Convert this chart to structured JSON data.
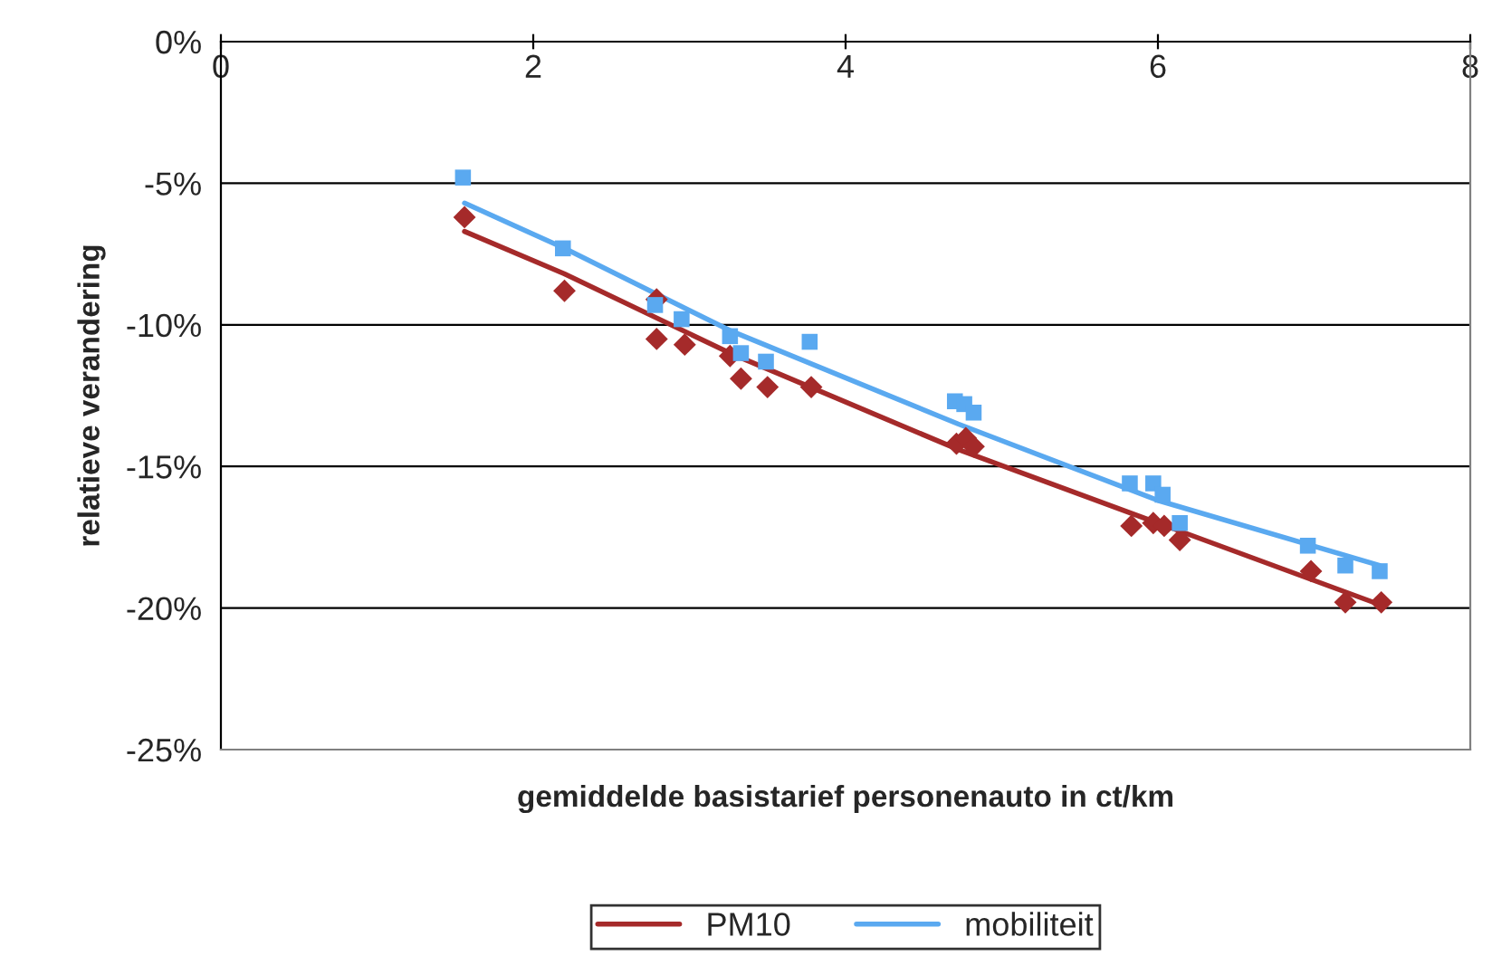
{
  "chart_data": {
    "type": "scatter",
    "xlabel": "gemiddelde basistarief personenauto in ct/km",
    "ylabel": "relatieve verandering",
    "xlim": [
      0,
      8
    ],
    "xticks": [
      0,
      2,
      4,
      6,
      8
    ],
    "ylim": [
      -25,
      0
    ],
    "yticks": [
      {
        "value": -25,
        "label": "-25%"
      },
      {
        "value": -20,
        "label": "-20%"
      },
      {
        "value": -15,
        "label": "-15%"
      },
      {
        "value": -10,
        "label": "-10%"
      },
      {
        "value": -5,
        "label": "-5%"
      },
      {
        "value": 0,
        "label": "0%"
      }
    ],
    "grid": "y",
    "legend": "bottom",
    "series": [
      {
        "marker": "diamond",
        "color": "#a52a2a",
        "x": [
          1.56,
          2.2,
          2.79,
          2.79,
          2.97,
          3.26,
          3.33,
          3.5,
          3.78,
          4.71,
          4.77,
          4.82,
          5.83,
          5.97,
          6.04,
          6.14,
          6.98,
          7.2,
          7.43
        ],
        "values": [
          -6.2,
          -8.8,
          -9.1,
          -10.5,
          -10.7,
          -11.1,
          -11.9,
          -12.2,
          -12.2,
          -14.2,
          -14.0,
          -14.3,
          -17.1,
          -17.0,
          -17.1,
          -17.6,
          -18.7,
          -19.8,
          -19.8
        ]
      },
      {
        "marker": "square",
        "color": "#5aa9f0",
        "x": [
          1.55,
          2.19,
          2.78,
          2.95,
          3.26,
          3.33,
          3.49,
          3.77,
          4.7,
          4.76,
          4.82,
          5.82,
          5.97,
          6.03,
          6.14,
          6.96,
          7.2,
          7.42
        ],
        "values": [
          -4.8,
          -7.3,
          -9.3,
          -9.8,
          -10.4,
          -11.0,
          -11.3,
          -10.6,
          -12.7,
          -12.8,
          -13.1,
          -15.6,
          -15.6,
          -16.0,
          -17.0,
          -17.8,
          -18.5,
          -18.7
        ]
      },
      {
        "type": "line",
        "name": "PM10",
        "marker": "none",
        "color": "#a52a2a",
        "x": [
          1.56,
          2.2,
          3.26,
          4.72,
          6.0,
          7.43
        ],
        "values": [
          -6.7,
          -8.2,
          -11.0,
          -14.4,
          -17.0,
          -19.9
        ]
      },
      {
        "type": "line",
        "name": "mobiliteit",
        "marker": "none",
        "color": "#5aa9f0",
        "x": [
          1.56,
          2.2,
          3.26,
          4.72,
          6.0,
          7.42
        ],
        "values": [
          -5.7,
          -7.3,
          -10.2,
          -13.5,
          -16.2,
          -18.5
        ]
      }
    ]
  }
}
